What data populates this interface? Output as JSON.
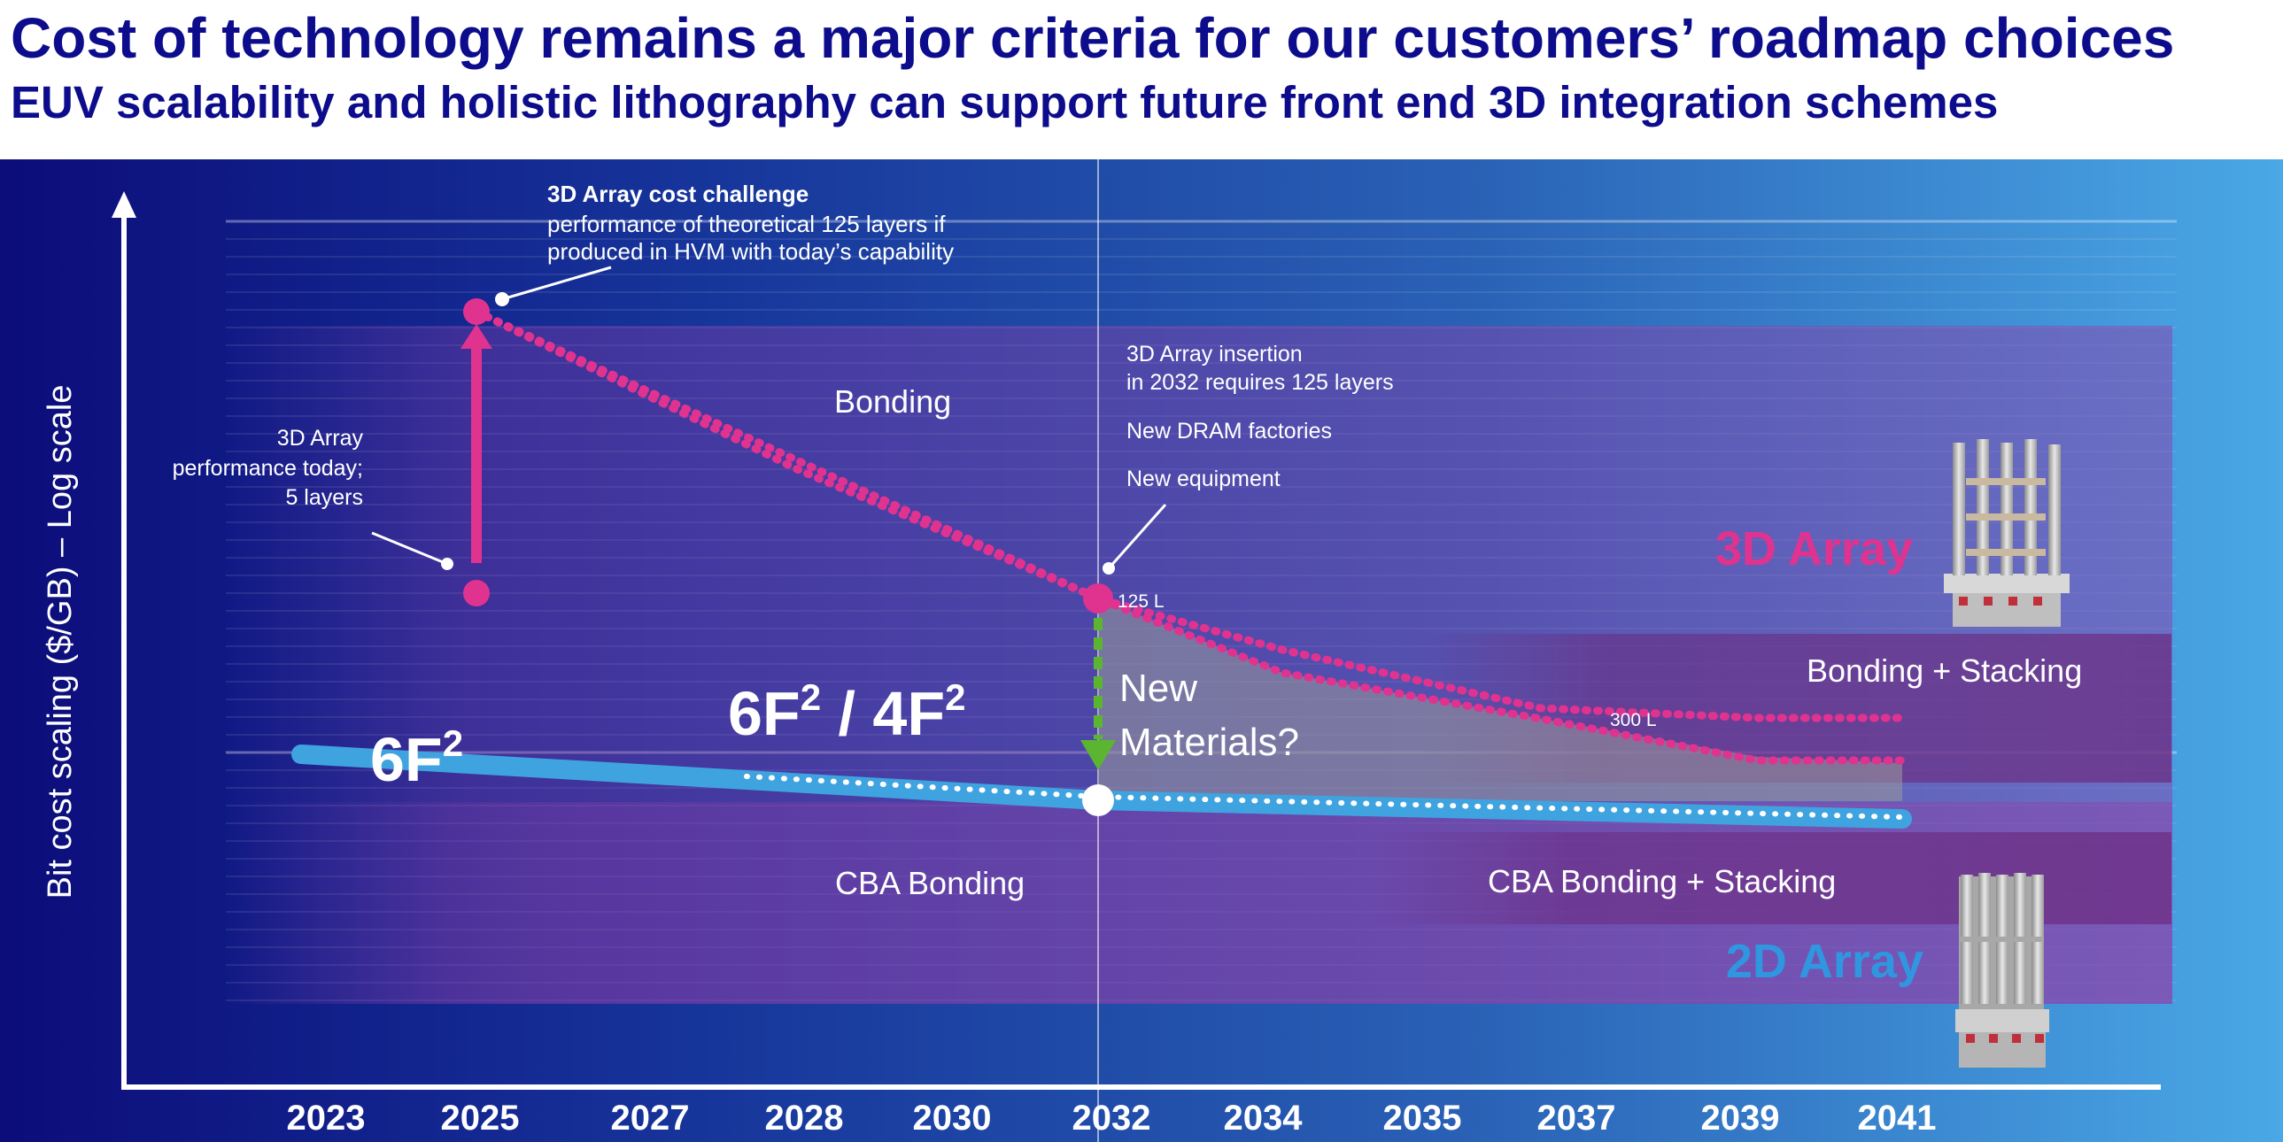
{
  "header": {
    "title": "Cost of technology remains a major criteria for our customers’ roadmap choices",
    "subtitle": "EUV scalability and holistic lithography can support future front end 3D integration schemes"
  },
  "chart_data": {
    "type": "line",
    "title": "",
    "xlabel": "",
    "ylabel": "Bit cost scaling ($/GB) – Log scale",
    "y_scale": "log",
    "grid": true,
    "x_ticks": [
      "2023",
      "2025",
      "2027",
      "2028",
      "2030",
      "2032",
      "2034",
      "2035",
      "2037",
      "2039",
      "2041"
    ],
    "series": [
      {
        "name": "3D Array",
        "color": "#e0338f",
        "x": [
          "2025",
          "2032",
          "2041"
        ]
      },
      {
        "name": "2D Array",
        "color": "#3fa3e0",
        "x": [
          "2023",
          "2032",
          "2041"
        ]
      }
    ],
    "legend_labels": {
      "array3d": "3D Array",
      "array2d": "2D Array"
    },
    "series_labels": {
      "f6": "6F",
      "f64_a": "6F",
      "f64_sep": " / 4F",
      "sup": "2"
    },
    "regions": {
      "bonding": "Bonding",
      "cba_bonding": "CBA Bonding",
      "bonding_stacking": "Bonding + Stacking",
      "cba_bonding_stacking": "CBA Bonding + Stacking"
    },
    "annotations": {
      "challenge_title": "3D Array cost challenge",
      "challenge_line1": "performance of theoretical 125 layers if",
      "challenge_line2": "produced in HVM with today’s capability",
      "today_line1": "3D Array",
      "today_line2": "performance today;",
      "today_line3": "5 layers",
      "insertion_line1": "3D Array insertion",
      "insertion_line2": "in 2032 requires 125 layers",
      "dram": "New DRAM factories",
      "equipment": "New equipment",
      "layers_125": "125 L",
      "layers_300": "300 L",
      "new_materials_line1": "New",
      "new_materials_line2": "Materials?"
    },
    "colors": {
      "magenta": "#e0338f",
      "blue": "#3fa3e0",
      "green": "#5bb531",
      "navy": "#0c0c8c",
      "label_blue": "#2f96df"
    }
  }
}
